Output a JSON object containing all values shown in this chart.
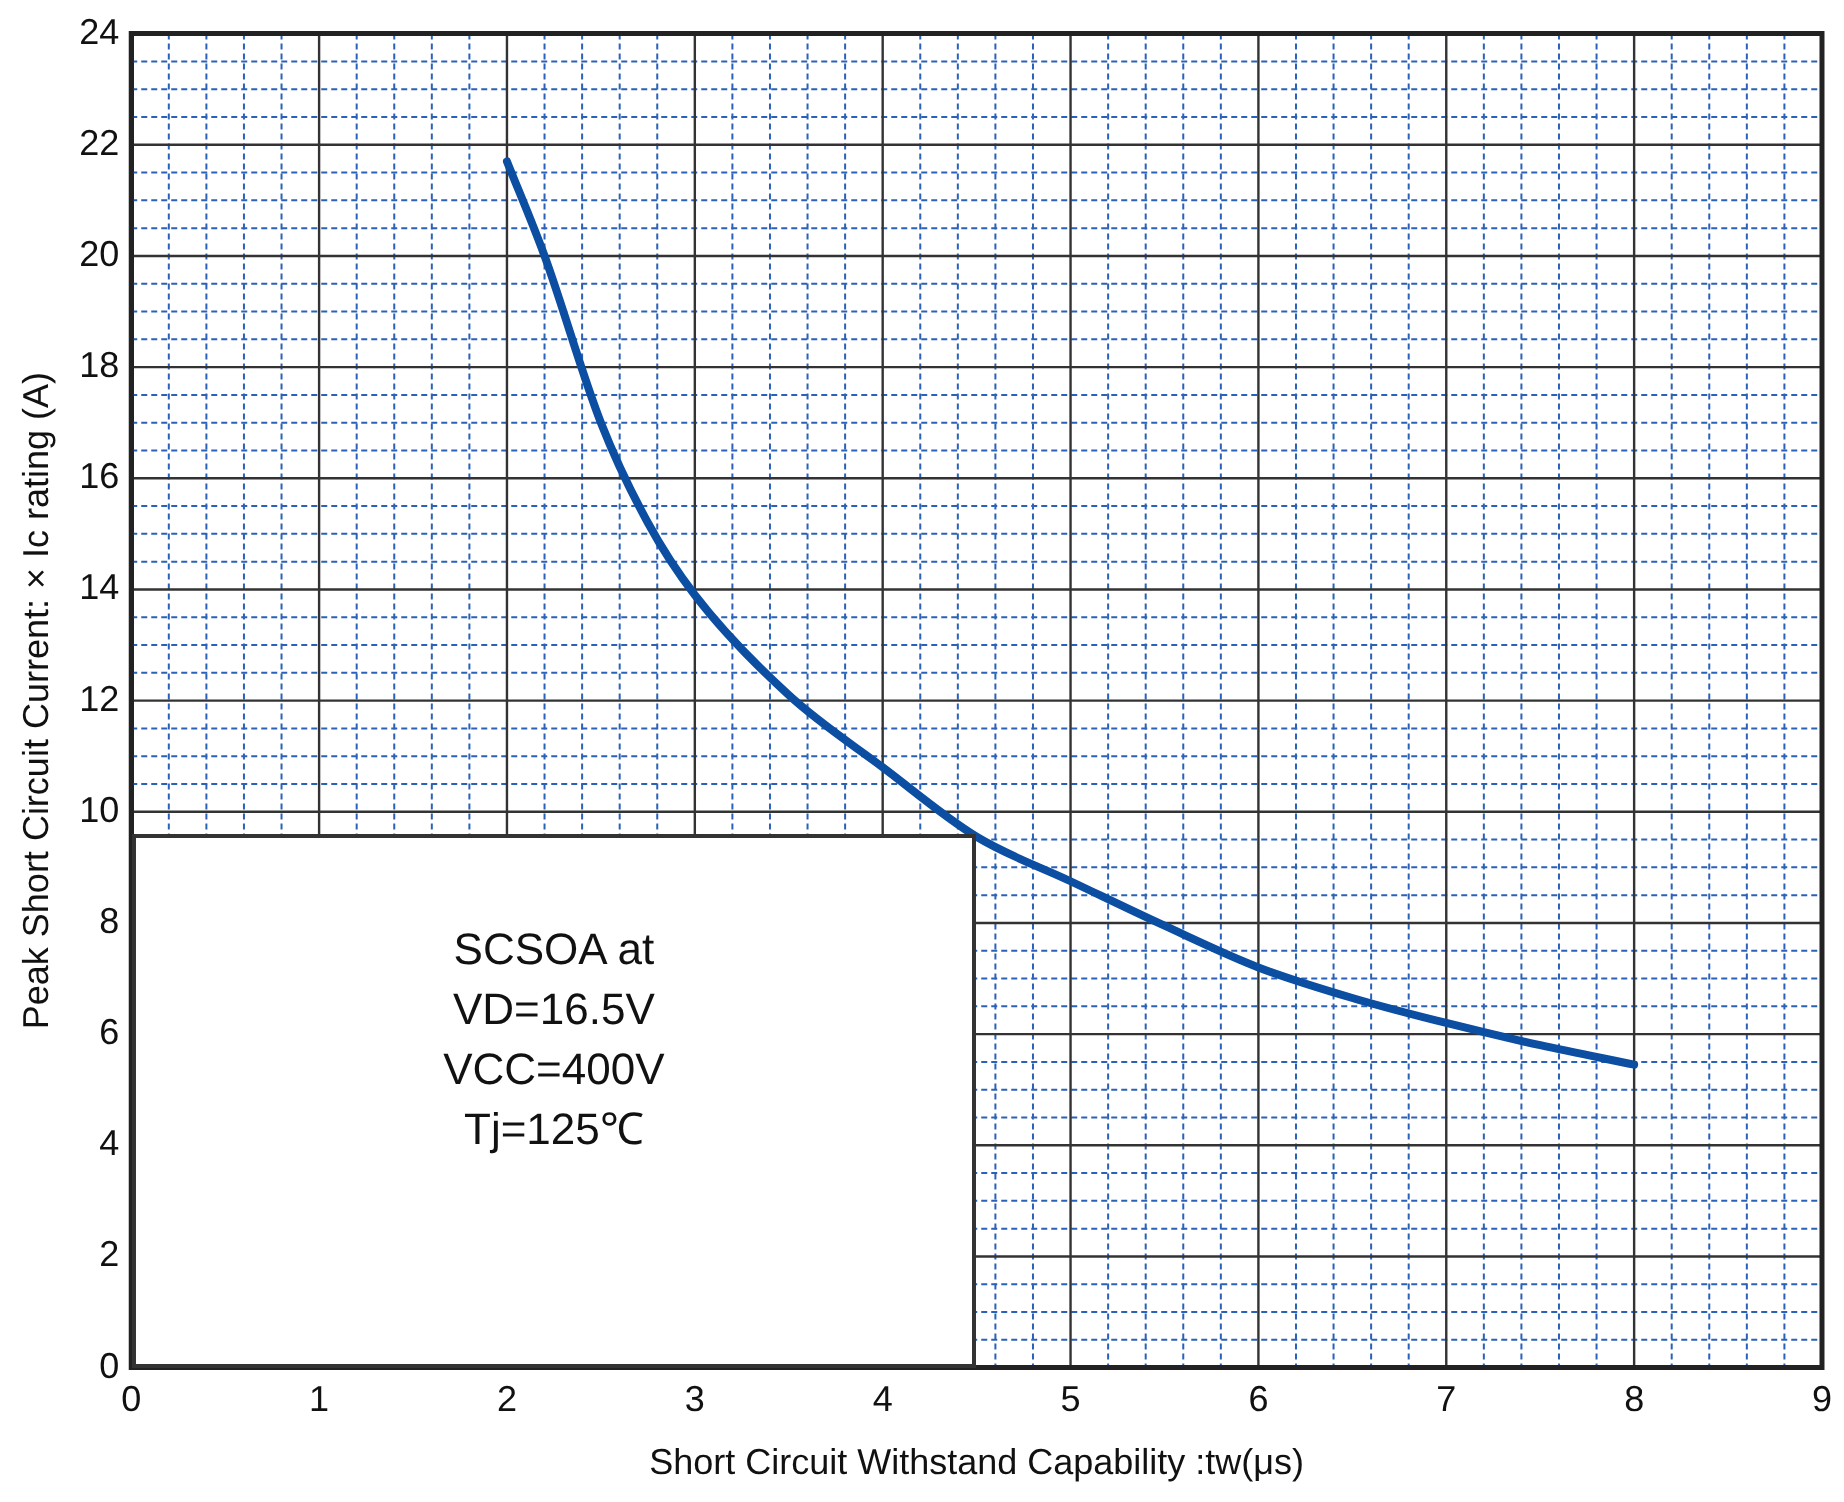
{
  "chart_data": {
    "type": "line",
    "xlabel": "Short Circuit Withstand Capability :tw(μs)",
    "ylabel": "Peak Short Circuit Current: × Ic rating (A)",
    "xlim": [
      0,
      9
    ],
    "xticks": [
      0,
      {
        "value": 0.2,
        "label": null
      },
      {
        "value": 0.4,
        "label": null
      },
      {
        "value": 0.6,
        "label": null
      },
      {
        "value": 0.8,
        "label": null
      },
      1,
      {
        "value": 1.2,
        "label": null
      },
      {
        "value": 1.4,
        "label": null
      },
      {
        "value": 1.6,
        "label": null
      },
      {
        "value": 1.8,
        "label": null
      },
      2,
      {
        "value": 2.2,
        "label": null
      },
      {
        "value": 2.4,
        "label": null
      },
      {
        "value": 2.6,
        "label": null
      },
      {
        "value": 2.8,
        "label": null
      },
      3,
      {
        "value": 3.2,
        "label": null
      },
      {
        "value": 3.4,
        "label": null
      },
      {
        "value": 3.6,
        "label": null
      },
      {
        "value": 3.8,
        "label": null
      },
      4,
      {
        "value": 4.2,
        "label": null
      },
      {
        "value": 4.4,
        "label": null
      },
      {
        "value": 4.6,
        "label": null
      },
      {
        "value": 4.8,
        "label": null
      },
      5,
      {
        "value": 5.2,
        "label": null
      },
      {
        "value": 5.4,
        "label": null
      },
      {
        "value": 5.6,
        "label": null
      },
      {
        "value": 5.8,
        "label": null
      },
      6,
      {
        "value": 6.2,
        "label": null
      },
      {
        "value": 6.4,
        "label": null
      },
      {
        "value": 6.6,
        "label": null
      },
      {
        "value": 6.8,
        "label": null
      },
      7,
      {
        "value": 7.2,
        "label": null
      },
      {
        "value": 7.4,
        "label": null
      },
      {
        "value": 7.6,
        "label": null
      },
      {
        "value": 7.8,
        "label": null
      },
      8,
      {
        "value": 8.2,
        "label": null
      },
      {
        "value": 8.4,
        "label": null
      },
      {
        "value": 8.6,
        "label": null
      },
      {
        "value": 8.8,
        "label": null
      },
      9
    ],
    "ylim": [
      0,
      24
    ],
    "yticks": [
      0,
      {
        "value": 0.5,
        "label": null
      },
      {
        "value": 1,
        "label": null
      },
      {
        "value": 1.5,
        "label": null
      },
      2,
      {
        "value": 2.5,
        "label": null
      },
      {
        "value": 3,
        "label": null
      },
      {
        "value": 3.5,
        "label": null
      },
      4,
      {
        "value": 4.5,
        "label": null
      },
      {
        "value": 5,
        "label": null
      },
      {
        "value": 5.5,
        "label": null
      },
      6,
      {
        "value": 6.5,
        "label": null
      },
      {
        "value": 7,
        "label": null
      },
      {
        "value": 7.5,
        "label": null
      },
      8,
      {
        "value": 8.5,
        "label": null
      },
      {
        "value": 9,
        "label": null
      },
      {
        "value": 9.5,
        "label": null
      },
      10,
      {
        "value": 10.5,
        "label": null
      },
      {
        "value": 11,
        "label": null
      },
      {
        "value": 11.5,
        "label": null
      },
      12,
      {
        "value": 12.5,
        "label": null
      },
      {
        "value": 13,
        "label": null
      },
      {
        "value": 13.5,
        "label": null
      },
      14,
      {
        "value": 14.5,
        "label": null
      },
      {
        "value": 15,
        "label": null
      },
      {
        "value": 15.5,
        "label": null
      },
      16,
      {
        "value": 16.5,
        "label": null
      },
      {
        "value": 17,
        "label": null
      },
      {
        "value": 17.5,
        "label": null
      },
      18,
      {
        "value": 18.5,
        "label": null
      },
      {
        "value": 19,
        "label": null
      },
      {
        "value": 19.5,
        "label": null
      },
      20,
      {
        "value": 20.5,
        "label": null
      },
      {
        "value": 21,
        "label": null
      },
      {
        "value": 21.5,
        "label": null
      },
      22,
      {
        "value": 22.5,
        "label": null
      },
      {
        "value": 23,
        "label": null
      },
      {
        "value": 23.5,
        "label": null
      },
      24
    ],
    "grid": true,
    "legend": false,
    "marker": "none",
    "line_style": "solid",
    "annotations": [
      "SCSOA at",
      "VD=16.5V",
      "VCC=400V",
      "Tj=125℃"
    ],
    "series": [
      {
        "color": "#0b4ea2",
        "x": [
          2,
          2.2,
          2.5,
          2.75,
          3,
          3.5,
          4,
          4.5,
          5,
          5.5,
          6,
          6.5,
          7,
          7.5,
          8
        ],
        "values": [
          21.7,
          20.0,
          17.0,
          15.2,
          13.9,
          12.1,
          10.8,
          9.55,
          8.75,
          7.95,
          7.2,
          6.65,
          6.2,
          5.8,
          5.45
        ]
      }
    ]
  }
}
